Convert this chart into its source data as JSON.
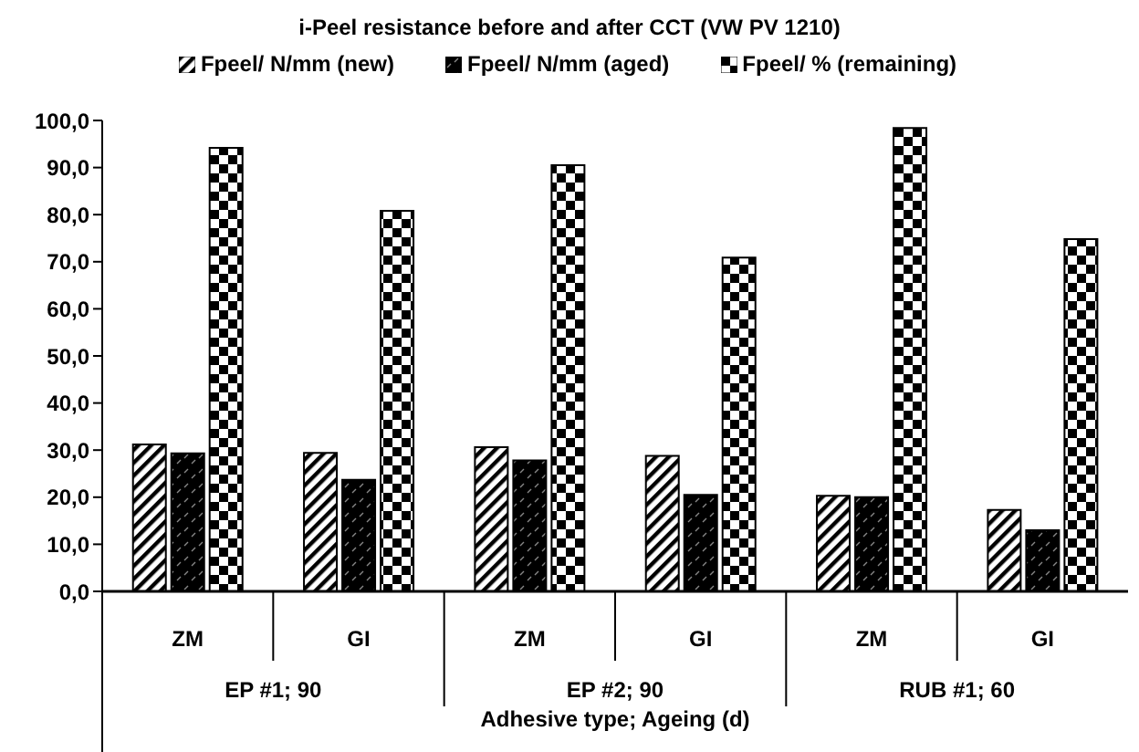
{
  "chart_data": {
    "type": "bar",
    "title": "i-Peel resistance before and after CCT (VW PV 1210)",
    "xlabel": "Adhesive type; Ageing (d)",
    "categories": [
      "ZM",
      "GI",
      "ZM",
      "GI",
      "ZM",
      "GI"
    ],
    "annotations": [
      "EP #1; 90",
      "EP #2; 90",
      "RUB #1; 60"
    ],
    "series": [
      {
        "name": "Fpeel/ N/mm (new)",
        "color": "#000000",
        "values": [
          31.2,
          29.4,
          30.6,
          28.8,
          20.3,
          17.3
        ]
      },
      {
        "name": "Fpeel/ N/mm (aged)",
        "color": "#000000",
        "values": [
          29.3,
          23.7,
          27.8,
          20.5,
          20.0,
          13.0
        ]
      },
      {
        "name": "Fpeel/ % (remaining)",
        "color": "#000000",
        "values": [
          94.2,
          80.8,
          90.5,
          70.9,
          98.4,
          74.8
        ]
      }
    ],
    "ylim": [
      0,
      100
    ],
    "yticks": [
      {
        "value": 0,
        "label": "0,0"
      },
      {
        "value": 10,
        "label": "10,0"
      },
      {
        "value": 20,
        "label": "20,0"
      },
      {
        "value": 30,
        "label": "30,0"
      },
      {
        "value": 40,
        "label": "40,0"
      },
      {
        "value": 50,
        "label": "50,0"
      },
      {
        "value": 60,
        "label": "60,0"
      },
      {
        "value": 70,
        "label": "70,0"
      },
      {
        "value": 80,
        "label": "80,0"
      },
      {
        "value": 90,
        "label": "90,0"
      },
      {
        "value": 100,
        "label": "100,0"
      }
    ],
    "legend": "top",
    "grid": false
  }
}
